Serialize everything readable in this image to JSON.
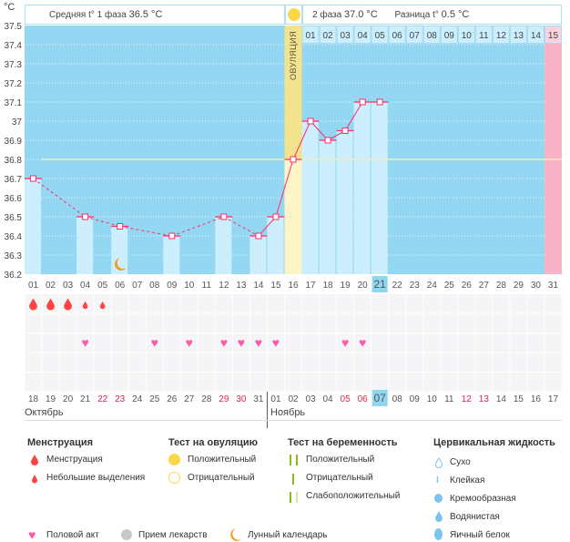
{
  "header": {
    "unit": "°C",
    "phase1_label": "Средняя t° 1 фаза",
    "phase1_value": "36.5 °C",
    "phase2_label": "2 фаза",
    "phase2_value": "37.0 °C",
    "diff_label": "Разница t°",
    "diff_value": "0.5 °C",
    "ovulation_label": "ОВУЛЯЦИЯ"
  },
  "colors": {
    "plot_bg": "#93d7f2",
    "bar": "#cdeefc",
    "line": "#ff2d6a",
    "ovulation_top": "#f2e38c",
    "ovulation_bottom": "#fdf5c8",
    "cover_line": "#f5edb0",
    "pink_day": "#f9b3c7",
    "highlight": "#8fd6f0",
    "menstruation": "#ff4444",
    "heart": "#ff5aaa",
    "weekend": "#e8204f"
  },
  "chart_data": {
    "type": "bar-line",
    "ylim": [
      36.2,
      37.5
    ],
    "yticks": [
      "37.5",
      "37.4",
      "37.3",
      "37.2",
      "37.1",
      "37",
      "36.9",
      "36.8",
      "36.7",
      "36.6",
      "36.5",
      "36.4",
      "36.3",
      "36.2"
    ],
    "cycle_days": [
      "01",
      "02",
      "03",
      "04",
      "05",
      "06",
      "07",
      "08",
      "09",
      "10",
      "11",
      "12",
      "13",
      "14",
      "15",
      "16",
      "17",
      "18",
      "19",
      "20",
      "21",
      "22",
      "23",
      "24",
      "25",
      "26",
      "27",
      "28",
      "29",
      "30",
      "31"
    ],
    "temperatures": {
      "1": 36.7,
      "4": 36.5,
      "6": 36.45,
      "9": 36.4,
      "12": 36.5,
      "14": 36.4,
      "15": 36.5,
      "16": 36.8,
      "17": 37.0,
      "18": 36.9,
      "19": 36.95,
      "20": 37.1,
      "21": 37.1
    },
    "cover_line": 36.8,
    "ovulation_day": 16,
    "current_day": 21,
    "phase2_days": [
      "01",
      "02",
      "03",
      "04",
      "05",
      "06",
      "07",
      "08",
      "09",
      "10",
      "11",
      "12",
      "13",
      "14",
      "15"
    ],
    "expected_period_day": 31,
    "moon_day": 6
  },
  "calendar": {
    "dates": [
      "18",
      "19",
      "20",
      "21",
      "22",
      "23",
      "24",
      "25",
      "26",
      "27",
      "28",
      "29",
      "30",
      "31",
      "01",
      "02",
      "03",
      "04",
      "05",
      "06",
      "07",
      "08",
      "09",
      "10",
      "11",
      "12",
      "13",
      "14",
      "15",
      "16",
      "17"
    ],
    "weekends": [
      "22",
      "23",
      "29",
      "30",
      "05",
      "06",
      "12",
      "13"
    ],
    "today_index": 21,
    "months": [
      "Октябрь",
      "Ноябрь"
    ],
    "menstruation_heavy": [
      1,
      2,
      3
    ],
    "menstruation_light": [
      4,
      5
    ],
    "intercourse": [
      4,
      8,
      10,
      12,
      13,
      14,
      15,
      19,
      20
    ]
  },
  "legend": {
    "menstruation": {
      "title": "Менструация",
      "items": [
        "Менструация",
        "Небольшие выделения"
      ]
    },
    "ovulation_test": {
      "title": "Тест на овуляцию",
      "items": [
        "Положительный",
        "Отрицательный"
      ]
    },
    "pregnancy_test": {
      "title": "Тест на беременность",
      "items": [
        "Положительный",
        "Отрицательный",
        "Слабоположительный"
      ]
    },
    "cervical": {
      "title": "Цервикальная жидкость",
      "items": [
        "Сухо",
        "Клейкая",
        "Кремообразная",
        "Водянистая",
        "Яичный белок"
      ]
    },
    "other": [
      "Половой акт",
      "Прием лекарств",
      "Лунный календарь"
    ]
  }
}
